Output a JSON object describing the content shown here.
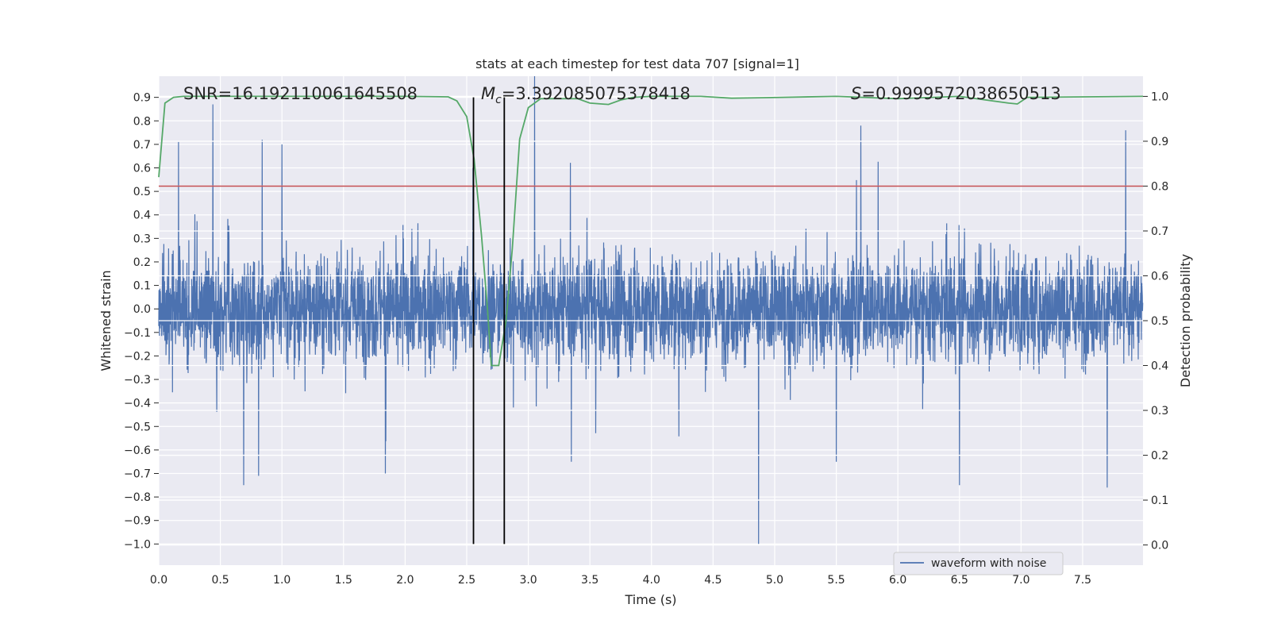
{
  "chart_data": {
    "type": "line",
    "title": "stats at each timestep for test data 707 [signal=1]",
    "xlabel": "Time (s)",
    "ylabel": "Whitened strain",
    "ylabel_right": "Detection probability",
    "xlim": [
      0.0,
      7.99
    ],
    "ylim": [
      -1.09,
      0.99
    ],
    "ylim_right": [
      -0.045,
      1.045
    ],
    "xticks": [
      0.0,
      0.5,
      1.0,
      1.5,
      2.0,
      2.5,
      3.0,
      3.5,
      4.0,
      4.5,
      5.0,
      5.5,
      6.0,
      6.5,
      7.0,
      7.5
    ],
    "xtick_labels": [
      "0.0",
      "0.5",
      "1.0",
      "1.5",
      "2.0",
      "2.5",
      "3.0",
      "3.5",
      "4.0",
      "4.5",
      "5.0",
      "5.5",
      "6.0",
      "6.5",
      "7.0",
      "7.5"
    ],
    "yticks": [
      0.9,
      0.8,
      0.7,
      0.6,
      0.5,
      0.4,
      0.3,
      0.2,
      0.1,
      0.0,
      -0.1,
      -0.2,
      -0.3,
      -0.4,
      -0.5,
      -0.6,
      -0.7,
      -0.8,
      -0.9,
      -1.0
    ],
    "ytick_labels": [
      "0.9",
      "0.8",
      "0.7",
      "0.6",
      "0.5",
      "0.4",
      "0.3",
      "0.2",
      "0.1",
      "0.0",
      "−0.1",
      "−0.2",
      "−0.3",
      "−0.4",
      "−0.5",
      "−0.6",
      "−0.7",
      "−0.8",
      "−0.9",
      "−1.0"
    ],
    "yticks_right": [
      1.0,
      0.9,
      0.8,
      0.7,
      0.6,
      0.5,
      0.4,
      0.3,
      0.2,
      0.1,
      0.0
    ],
    "ytick_labels_right": [
      "1.0",
      "0.9",
      "0.8",
      "0.7",
      "0.6",
      "0.5",
      "0.4",
      "0.3",
      "0.2",
      "0.1",
      "0.0"
    ],
    "grid": true,
    "legend": {
      "placement": "lower-right",
      "entries": [
        "waveform with noise"
      ]
    },
    "annotations": {
      "snr": "SNR=16.192110061645508",
      "mc_symbol": "M",
      "mc_sub": "c",
      "mc_value": "=3.392085075378418",
      "s_symbol": "S",
      "s_value": "=0.9999572038650513"
    },
    "threshold_right": 0.8,
    "vlines_x": [
      2.555,
      2.805
    ],
    "vlines_yrange": [
      -1.0,
      0.9
    ],
    "waveform": {
      "name": "waveform with noise",
      "color": "#4c72b0",
      "fs": 512,
      "duration": 8.0,
      "peaks": [
        [
          0.44,
          0.87
        ],
        [
          0.16,
          0.71
        ],
        [
          0.84,
          0.72
        ],
        [
          1.0,
          0.7
        ],
        [
          2.55,
          0.6
        ],
        [
          3.05,
          0.99
        ],
        [
          5.7,
          0.78
        ],
        [
          7.85,
          0.76
        ],
        [
          4.87,
          -1.0
        ],
        [
          0.69,
          -0.75
        ],
        [
          0.81,
          -0.71
        ],
        [
          1.84,
          -0.7
        ],
        [
          6.5,
          -0.75
        ],
        [
          7.7,
          -0.76
        ],
        [
          3.35,
          -0.65
        ],
        [
          5.5,
          -0.65
        ]
      ]
    },
    "probability": {
      "color": "#55a868",
      "x": [
        0.0,
        0.05,
        0.12,
        0.2,
        0.4,
        1.0,
        2.0,
        2.35,
        2.42,
        2.5,
        2.56,
        2.62,
        2.67,
        2.7,
        2.76,
        2.82,
        2.87,
        2.93,
        3.0,
        3.1,
        3.4,
        3.5,
        3.65,
        3.75,
        3.85,
        4.0,
        4.4,
        4.65,
        4.9,
        5.5,
        6.0,
        6.5,
        6.9,
        6.97,
        7.05,
        7.99
      ],
      "y": [
        0.82,
        0.985,
        0.998,
        1.0,
        1.0,
        1.0,
        1.0,
        0.999,
        0.99,
        0.955,
        0.86,
        0.69,
        0.52,
        0.4,
        0.4,
        0.5,
        0.66,
        0.905,
        0.975,
        0.995,
        0.995,
        0.985,
        0.982,
        0.992,
        0.998,
        1.0,
        1.0,
        0.996,
        0.997,
        1.0,
        0.995,
        1.0,
        0.985,
        0.983,
        0.998,
        1.0
      ]
    },
    "red_line_color": "#c44e52"
  }
}
